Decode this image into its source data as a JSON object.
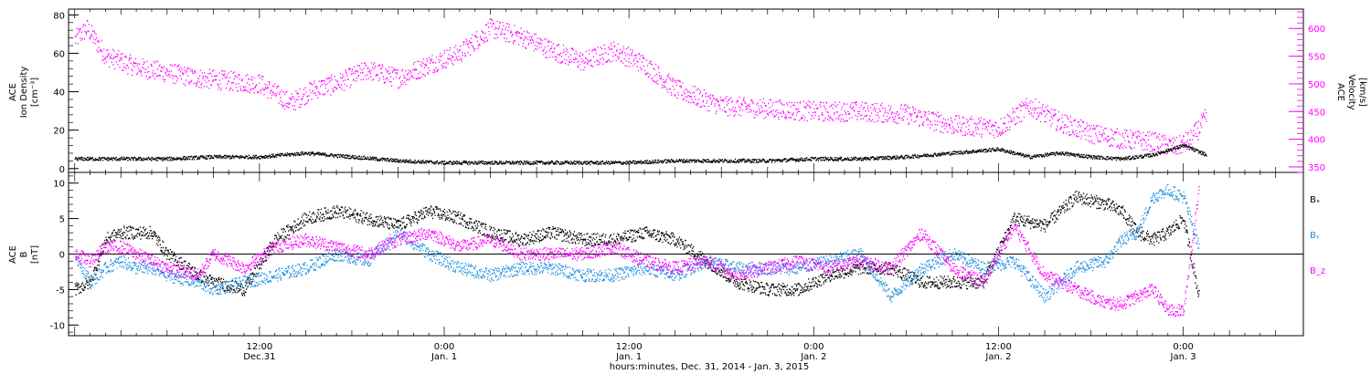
{
  "chart_data": [
    {
      "type": "scatter",
      "panel": "ion-density-velocity",
      "y_left": {
        "label_lines": [
          "ACE",
          "Ion Density",
          "[cm⁻³]"
        ],
        "range": [
          -2,
          83
        ],
        "ticks": [
          0,
          20,
          40,
          60,
          80
        ],
        "tick_labels": [
          "0",
          "20",
          "40",
          "60",
          "80"
        ]
      },
      "y_right": {
        "label_lines": [
          "ACE",
          "Velocity",
          "[km/s]"
        ],
        "range": [
          340,
          635
        ],
        "ticks": [
          350,
          400,
          450,
          500,
          550,
          600
        ],
        "tick_labels": [
          "350",
          "400",
          "450",
          "500",
          "550",
          "600"
        ],
        "color": "#ff00ff"
      },
      "series": [
        {
          "key": "density",
          "axis": "left",
          "color": "#000000",
          "x_hours": [
            0,
            3,
            6,
            9,
            12,
            15,
            18,
            21,
            24,
            27,
            30,
            33,
            36,
            39,
            42,
            45,
            48,
            51,
            54,
            57,
            60,
            62,
            64,
            66,
            68,
            70,
            72,
            73.5
          ],
          "y": [
            5,
            5,
            5,
            6,
            6,
            8,
            6,
            4,
            3,
            3,
            3,
            3,
            3,
            4,
            4,
            4,
            5,
            5,
            6,
            8,
            10,
            6,
            8,
            6,
            5,
            7,
            12,
            7
          ]
        },
        {
          "key": "velocity",
          "axis": "right",
          "color": "#ff00ff",
          "x_hours": [
            0,
            0.8,
            2,
            4,
            6,
            8,
            10,
            12,
            14,
            15.5,
            17,
            19,
            21,
            23,
            25,
            27,
            29,
            31,
            33,
            35,
            37,
            39,
            42,
            45,
            48,
            51,
            54,
            57,
            60,
            62,
            64,
            66,
            68,
            70,
            71.5,
            72.5,
            73.5
          ],
          "y": [
            580,
            600,
            550,
            530,
            520,
            510,
            505,
            500,
            465,
            490,
            500,
            525,
            510,
            535,
            555,
            600,
            585,
            560,
            540,
            560,
            535,
            490,
            460,
            455,
            450,
            450,
            445,
            425,
            420,
            460,
            430,
            410,
            400,
            395,
            385,
            400,
            440
          ]
        }
      ]
    },
    {
      "type": "scatter",
      "panel": "magnetic-field",
      "y_left": {
        "label_lines": [
          "ACE",
          "B",
          "[nT]"
        ],
        "range": [
          -11.5,
          11.5
        ],
        "ticks": [
          -10,
          -5,
          0,
          5,
          10
        ],
        "tick_labels": [
          "-10",
          "-5",
          "0",
          "5",
          "10"
        ]
      },
      "zero_line": true,
      "legend": {
        "placement": "right",
        "entries": [
          "Bₓ",
          "Bᵧ",
          "B_z"
        ],
        "colors": [
          "#000000",
          "#1f8fe0",
          "#ff00ff"
        ]
      },
      "series": [
        {
          "key": "bx",
          "color": "#000000",
          "x_hours": [
            0,
            1,
            2,
            3,
            4,
            5,
            6,
            8,
            9,
            11,
            13,
            15,
            17,
            19,
            21,
            23,
            25,
            27,
            29,
            31,
            33,
            35,
            37,
            39,
            41,
            43,
            45,
            47,
            49,
            51,
            53,
            55,
            57,
            59,
            61,
            63,
            65,
            67,
            68,
            69,
            70,
            71,
            72,
            73
          ],
          "y": [
            -5,
            -4,
            2,
            3,
            3,
            3,
            0,
            -3,
            -4,
            -5,
            2,
            5,
            6,
            5,
            4,
            6,
            5,
            3,
            2,
            3,
            2,
            2,
            3,
            2,
            -1,
            -4,
            -5,
            -5,
            -3,
            -2,
            -2,
            -4,
            -4,
            -4,
            5,
            4,
            8,
            7,
            6,
            3,
            2,
            3,
            5,
            -6
          ]
        },
        {
          "key": "by",
          "color": "#1f8fe0",
          "x_hours": [
            0,
            1,
            2,
            3,
            4,
            5,
            6,
            8,
            9,
            11,
            13,
            15,
            17,
            19,
            21,
            23,
            25,
            27,
            29,
            31,
            33,
            35,
            37,
            39,
            41,
            43,
            45,
            47,
            49,
            51,
            53,
            55,
            57,
            59,
            61,
            63,
            65,
            67,
            68,
            69,
            70,
            71,
            72,
            73
          ],
          "y": [
            0,
            -4,
            -2,
            -1,
            -2,
            -2,
            -3,
            -4,
            -5,
            -4,
            -3,
            -2,
            0,
            -1,
            3,
            0,
            -2,
            -3,
            -2,
            -2,
            -3,
            -3,
            -2,
            -3,
            -1,
            -2,
            -2,
            -2,
            -1,
            0,
            -6,
            -2,
            0,
            -2,
            -1,
            -6,
            -2,
            -1,
            2,
            3,
            8,
            9,
            8,
            1
          ]
        },
        {
          "key": "bz",
          "color": "#ff00ff",
          "x_hours": [
            0,
            1,
            2,
            3,
            4,
            5,
            6,
            8,
            9,
            11,
            13,
            15,
            17,
            19,
            21,
            23,
            25,
            27,
            29,
            31,
            33,
            35,
            37,
            39,
            41,
            43,
            45,
            47,
            49,
            51,
            53,
            55,
            57,
            59,
            61,
            63,
            65,
            67,
            68,
            69,
            70,
            71,
            72,
            73
          ],
          "y": [
            0,
            -1,
            1,
            1,
            0,
            -1,
            -2,
            -3,
            0,
            -2,
            1,
            2,
            1,
            0,
            2,
            3,
            1,
            2,
            0,
            0,
            0,
            1,
            -1,
            -2,
            -1,
            -3,
            -2,
            -1,
            -2,
            -1,
            -2,
            3,
            -2,
            -4,
            4,
            -3,
            -5,
            -7,
            -7,
            -6,
            -5,
            -8,
            -8,
            9
          ]
        }
      ]
    }
  ],
  "x_axis": {
    "range_hours": [
      -0.4,
      79.8
    ],
    "labels": [
      {
        "hour": 12,
        "time": "12:00",
        "date": "Dec.31"
      },
      {
        "hour": 24,
        "time": "0:00",
        "date": "Jan. 1"
      },
      {
        "hour": 36,
        "time": "12:00",
        "date": "Jan. 1"
      },
      {
        "hour": 48,
        "time": "0:00",
        "date": "Jan. 2"
      },
      {
        "hour": 60,
        "time": "12:00",
        "date": "Jan. 2"
      },
      {
        "hour": 72,
        "time": "0:00",
        "date": "Jan. 3"
      }
    ],
    "title": "hours:minutes, Dec. 31, 2014 - Jan.  3, 2015"
  }
}
